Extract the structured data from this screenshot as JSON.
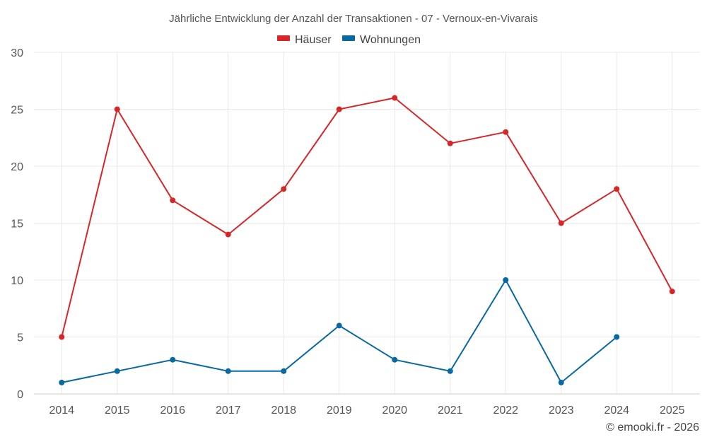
{
  "chart_data": {
    "type": "line",
    "title": "Jährliche Entwicklung der Anzahl der Transaktionen - 07 - Vernoux-en-Vivarais",
    "categories": [
      "2014",
      "2015",
      "2016",
      "2017",
      "2018",
      "2019",
      "2020",
      "2021",
      "2022",
      "2023",
      "2024",
      "2025"
    ],
    "series": [
      {
        "name": "Häuser",
        "color": "#d62728",
        "values": [
          5,
          25,
          17,
          14,
          18,
          25,
          26,
          22,
          23,
          15,
          18,
          9
        ]
      },
      {
        "name": "Wohnungen",
        "color": "#0868a0",
        "values": [
          1,
          2,
          3,
          2,
          2,
          6,
          3,
          2,
          10,
          1,
          5,
          null
        ]
      }
    ],
    "ylim": [
      0,
      30
    ],
    "yticks": [
      0,
      5,
      10,
      15,
      20,
      25,
      30
    ],
    "xlabel": "",
    "ylabel": "",
    "grid": true,
    "legend_position": "top-center"
  },
  "credit": "© emooki.fr - 2026"
}
